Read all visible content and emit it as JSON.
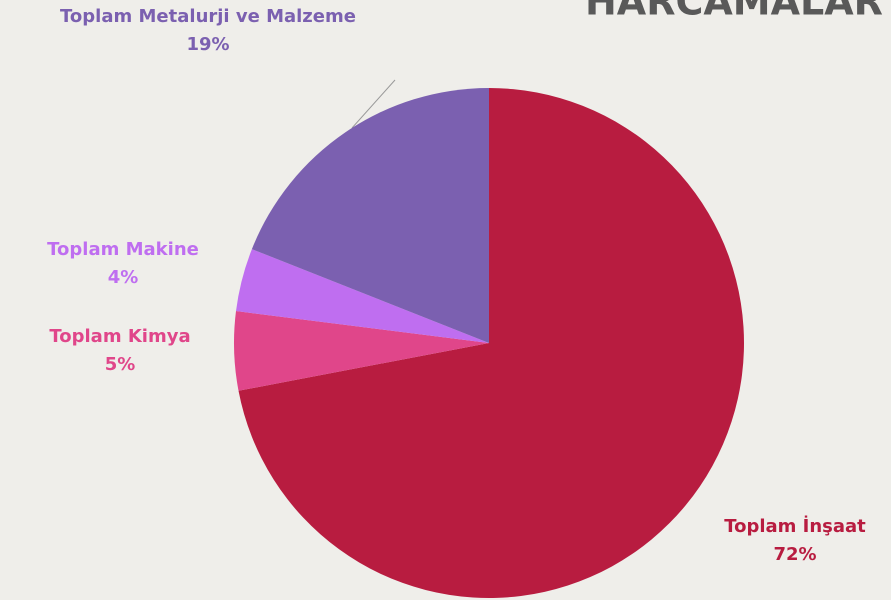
{
  "chart_data": {
    "type": "pie",
    "title": "HARCAMALAR",
    "categories": [
      "Toplam İnşaat",
      "Toplam Kimya",
      "Toplam Makine",
      "Toplam Metalurji ve Malzeme"
    ],
    "values": [
      72,
      5,
      4,
      19
    ],
    "value_labels": [
      "72%",
      "5%",
      "4%",
      "19%"
    ],
    "colors": [
      "#b81c40",
      "#e0468a",
      "#bf6ef0",
      "#7b60b0"
    ]
  }
}
